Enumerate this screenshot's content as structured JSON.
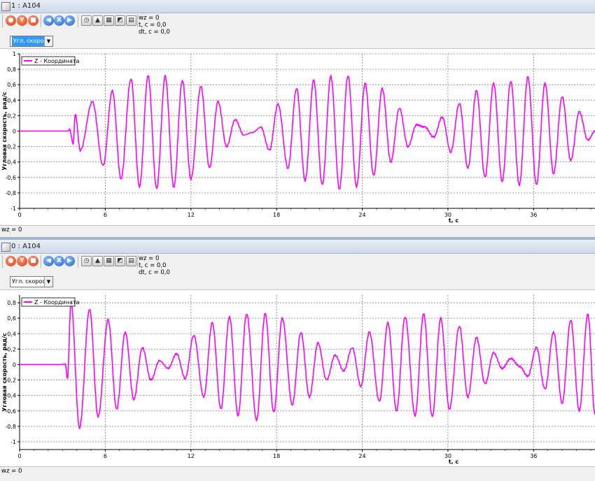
{
  "windows": [
    {
      "title": "1 : A104",
      "readout": [
        "wz = 0",
        "t, c = 0,0",
        "dt, c = 0,0"
      ],
      "combo_value": "Угл. скорост.",
      "status": "wz = 0"
    },
    {
      "title": "0 : A104",
      "readout": [
        "wz = 0",
        "t, c = 0,0",
        "dt, c = 0,0"
      ],
      "combo_value": "Угл. скорость",
      "status": "wz = 0"
    }
  ],
  "toolbar_icons": [
    "record-icon",
    "y-icon",
    "stop-icon",
    "prev-icon",
    "x-icon",
    "next-icon",
    "stopwatch-icon",
    "chart-icon",
    "table-icon",
    "image-icon",
    "doc-icon"
  ],
  "colors": {
    "series": "#ff00ff",
    "grid": "#808080",
    "axis": "#000000",
    "accent": "#3399ff"
  },
  "chart_data": [
    {
      "type": "line",
      "xlabel": "t, c",
      "ylabel": "Угловая скорость, рад/с",
      "xlim": [
        0,
        40.3
      ],
      "ylim": [
        -1,
        1
      ],
      "xticks": [
        0,
        6,
        12,
        18,
        24,
        30,
        36
      ],
      "yticks": [
        -1,
        -0.8,
        -0.6,
        -0.4,
        -0.2,
        0,
        0.2,
        0.4,
        0.6,
        0.8,
        1
      ],
      "legend": "top-left",
      "grid": true,
      "series": [
        {
          "name": "Z - Координата",
          "points": [
            [
              0,
              0
            ],
            [
              3.4,
              0
            ],
            [
              3.5,
              0.02
            ],
            [
              3.75,
              -0.16
            ],
            [
              3.9,
              0.22
            ],
            [
              4.25,
              -0.25
            ],
            [
              5.1,
              0.38
            ],
            [
              5.85,
              -0.45
            ],
            [
              6.5,
              0.52
            ],
            [
              7.1,
              -0.62
            ],
            [
              7.8,
              0.68
            ],
            [
              8.4,
              -0.72
            ],
            [
              9,
              0.72
            ],
            [
              9.6,
              -0.75
            ],
            [
              10.2,
              0.71
            ],
            [
              10.8,
              -0.73
            ],
            [
              11.4,
              0.66
            ],
            [
              12,
              -0.62
            ],
            [
              12.7,
              0.58
            ],
            [
              13.3,
              -0.48
            ],
            [
              13.9,
              0.38
            ],
            [
              14.5,
              -0.2
            ],
            [
              15.1,
              0.15
            ],
            [
              15.7,
              -0.05
            ],
            [
              16.3,
              -0.02
            ],
            [
              16.9,
              0.05
            ],
            [
              17.5,
              -0.25
            ],
            [
              18.1,
              0.35
            ],
            [
              18.8,
              -0.48
            ],
            [
              19.4,
              0.56
            ],
            [
              20,
              -0.64
            ],
            [
              20.6,
              0.66
            ],
            [
              21.2,
              -0.7
            ],
            [
              21.8,
              0.71
            ],
            [
              22.4,
              -0.75
            ],
            [
              23,
              0.72
            ],
            [
              23.6,
              -0.72
            ],
            [
              24.2,
              0.62
            ],
            [
              24.8,
              -0.58
            ],
            [
              25.4,
              0.55
            ],
            [
              26,
              -0.4
            ],
            [
              26.6,
              0.3
            ],
            [
              27.2,
              -0.2
            ],
            [
              27.8,
              0.08
            ],
            [
              28.4,
              0.05
            ],
            [
              29,
              -0.08
            ],
            [
              29.6,
              0.18
            ],
            [
              30.2,
              -0.27
            ],
            [
              30.8,
              0.36
            ],
            [
              31.4,
              -0.48
            ],
            [
              32,
              0.52
            ],
            [
              32.6,
              -0.6
            ],
            [
              33.2,
              0.62
            ],
            [
              33.8,
              -0.65
            ],
            [
              34.4,
              0.65
            ],
            [
              35,
              -0.7
            ],
            [
              35.6,
              0.7
            ],
            [
              36.2,
              -0.7
            ],
            [
              36.8,
              0.62
            ],
            [
              37.4,
              -0.55
            ],
            [
              38,
              0.45
            ],
            [
              38.6,
              -0.38
            ],
            [
              39.2,
              0.25
            ],
            [
              39.8,
              -0.12
            ],
            [
              40.3,
              0
            ]
          ]
        }
      ]
    },
    {
      "type": "line",
      "xlabel": "t, c",
      "ylabel": "Угловая скорость, рад/с",
      "xlim": [
        0,
        40.3
      ],
      "ylim": [
        -1.1,
        0.9
      ],
      "xticks": [
        0,
        6,
        12,
        18,
        24,
        30,
        36
      ],
      "yticks": [
        -1,
        -0.8,
        -0.6,
        -0.4,
        -0.2,
        0,
        0.2,
        0.4,
        0.6,
        0.8
      ],
      "legend": "top-left",
      "grid": true,
      "series": [
        {
          "name": "Z - Координата",
          "points": [
            [
              0,
              0
            ],
            [
              3.2,
              0
            ],
            [
              3.35,
              -0.18
            ],
            [
              3.6,
              0.8
            ],
            [
              4.2,
              -0.82
            ],
            [
              4.9,
              0.72
            ],
            [
              5.5,
              -0.68
            ],
            [
              6.2,
              0.58
            ],
            [
              6.8,
              -0.58
            ],
            [
              7.4,
              0.42
            ],
            [
              8,
              -0.45
            ],
            [
              8.6,
              0.22
            ],
            [
              9.2,
              -0.2
            ],
            [
              9.8,
              0.05
            ],
            [
              10.4,
              -0.05
            ],
            [
              11,
              0.14
            ],
            [
              11.6,
              -0.18
            ],
            [
              12.2,
              0.38
            ],
            [
              12.9,
              -0.42
            ],
            [
              13.5,
              0.54
            ],
            [
              14.1,
              -0.58
            ],
            [
              14.7,
              0.62
            ],
            [
              15.3,
              -0.66
            ],
            [
              15.9,
              0.66
            ],
            [
              16.6,
              -0.72
            ],
            [
              17.2,
              0.66
            ],
            [
              17.8,
              -0.62
            ],
            [
              18.4,
              0.6
            ],
            [
              19.1,
              -0.52
            ],
            [
              19.7,
              0.42
            ],
            [
              20.3,
              -0.42
            ],
            [
              20.9,
              0.28
            ],
            [
              21.5,
              -0.2
            ],
            [
              22.1,
              0.12
            ],
            [
              22.7,
              -0.08
            ],
            [
              23.3,
              0.22
            ],
            [
              23.9,
              -0.28
            ],
            [
              24.5,
              0.42
            ],
            [
              25.2,
              -0.48
            ],
            [
              25.8,
              0.54
            ],
            [
              26.4,
              -0.6
            ],
            [
              27,
              0.62
            ],
            [
              27.7,
              -0.66
            ],
            [
              28.3,
              0.66
            ],
            [
              28.9,
              -0.68
            ],
            [
              29.5,
              0.6
            ],
            [
              30.1,
              -0.58
            ],
            [
              30.8,
              0.5
            ],
            [
              31.4,
              -0.42
            ],
            [
              32,
              0.35
            ],
            [
              32.6,
              -0.25
            ],
            [
              33.2,
              0.15
            ],
            [
              33.8,
              -0.05
            ],
            [
              34.4,
              0.08
            ],
            [
              35,
              -0.02
            ],
            [
              35.6,
              -0.15
            ],
            [
              36.2,
              0.22
            ],
            [
              36.8,
              -0.32
            ],
            [
              37.4,
              0.42
            ],
            [
              38,
              -0.5
            ],
            [
              38.6,
              0.58
            ],
            [
              39.2,
              -0.6
            ],
            [
              39.8,
              0.65
            ],
            [
              40.3,
              -0.65
            ]
          ]
        }
      ]
    }
  ]
}
